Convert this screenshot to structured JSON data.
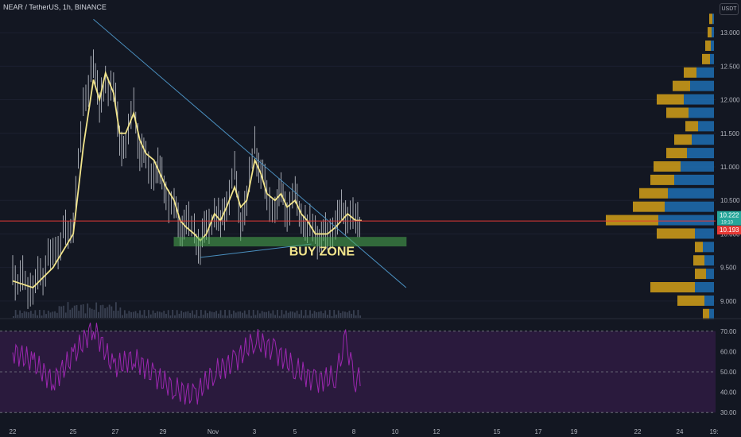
{
  "header": {
    "symbol_line": "NEAR / TetherUS, 1h, BINANCE",
    "currency": "USDT"
  },
  "colors": {
    "background": "#131722",
    "candle": "#c8ccd4",
    "ma": "#f2e58c",
    "price_line": "#e53935",
    "trendline": "#4a8fbf",
    "buy_zone": "#4caf50",
    "vp_up": "#d4a017",
    "vp_down": "#1e6fb3",
    "rsi_line": "#9c27b0",
    "rsi_band": "#2a1a3d"
  },
  "annotations": {
    "buy_zone_label": "BUY ZONE"
  },
  "chart_data": [
    {
      "type": "line",
      "title": "NEAR / TetherUS, 1h, BINANCE",
      "x_ticks": [
        "22",
        "25",
        "27",
        "29",
        "Nov",
        "3",
        "5",
        "8",
        "10",
        "12",
        "15",
        "17",
        "19",
        "22",
        "24",
        "19:"
      ],
      "y_ticks": [
        "13.000",
        "12.500",
        "12.000",
        "11.500",
        "11.000",
        "10.500",
        "10.000",
        "9.500",
        "9.000"
      ],
      "ylim": [
        8.75,
        13.25
      ],
      "series": [
        {
          "x": [
            22,
            23,
            24,
            25,
            25.5,
            26,
            26.3,
            26.6,
            27,
            27.3,
            27.6,
            28,
            28.3,
            28.6,
            29,
            29.3,
            29.6,
            30,
            30.3,
            30.6,
            31,
            31.3,
            31.6,
            32,
            32.3,
            32.6,
            33,
            33.3,
            33.6,
            34,
            34.3,
            34.6,
            35,
            35.3,
            35.6,
            36,
            36.3,
            36.6,
            37,
            37.3,
            37.6,
            38,
            38.3,
            38.6,
            39,
            39.3
          ],
          "close": [
            9.4,
            9.2,
            9.7,
            10.2,
            11.8,
            12.7,
            11.8,
            12.3,
            12.2,
            11.4,
            11.3,
            11.9,
            11.3,
            11.0,
            11.0,
            10.9,
            10.6,
            10.4,
            10.1,
            10.2,
            10.0,
            9.9,
            10.0,
            10.4,
            10.1,
            10.5,
            10.9,
            10.2,
            10.5,
            11.3,
            11.0,
            10.5,
            10.4,
            10.6,
            10.4,
            10.5,
            10.3,
            10.1,
            10.0,
            10.0,
            9.95,
            10.2,
            10.3,
            10.4,
            10.1,
            10.22
          ],
          "ma": [
            9.3,
            9.2,
            9.5,
            10.0,
            11.3,
            12.3,
            12.0,
            12.4,
            12.1,
            11.5,
            11.5,
            11.8,
            11.4,
            11.2,
            11.1,
            10.9,
            10.7,
            10.5,
            10.2,
            10.1,
            10.0,
            9.9,
            10.0,
            10.3,
            10.2,
            10.4,
            10.7,
            10.4,
            10.5,
            11.1,
            10.9,
            10.6,
            10.5,
            10.6,
            10.4,
            10.5,
            10.3,
            10.2,
            10.0,
            10.0,
            10.0,
            10.1,
            10.2,
            10.3,
            10.2,
            10.2
          ]
        }
      ],
      "current_price": {
        "value": 10.222,
        "label": "10.222",
        "countdown": "19:10"
      },
      "price_line": {
        "value": 10.193,
        "label": "10.193"
      },
      "trendlines": [
        {
          "from": {
            "x": 26,
            "y": 13.2
          },
          "to": {
            "x": 41.5,
            "y": 9.2
          }
        },
        {
          "from": {
            "x": 31.3,
            "y": 9.65
          },
          "to": {
            "x": 36.8,
            "y": 9.85
          }
        }
      ],
      "buy_zone": {
        "x_start": 30,
        "x_end": 41.5,
        "y_low": 9.82,
        "y_high": 9.95,
        "label": "BUY ZONE"
      },
      "volume_profile": [
        {
          "price": 13.2,
          "up": 4,
          "down": 2
        },
        {
          "price": 13.0,
          "up": 5,
          "down": 3
        },
        {
          "price": 12.8,
          "up": 7,
          "down": 4
        },
        {
          "price": 12.6,
          "up": 10,
          "down": 5
        },
        {
          "price": 12.4,
          "up": 16,
          "down": 22
        },
        {
          "price": 12.2,
          "up": 22,
          "down": 30
        },
        {
          "price": 12.0,
          "up": 34,
          "down": 38
        },
        {
          "price": 11.8,
          "up": 28,
          "down": 32
        },
        {
          "price": 11.6,
          "up": 16,
          "down": 20
        },
        {
          "price": 11.4,
          "up": 22,
          "down": 28
        },
        {
          "price": 11.2,
          "up": 26,
          "down": 34
        },
        {
          "price": 11.0,
          "up": 34,
          "down": 42
        },
        {
          "price": 10.8,
          "up": 30,
          "down": 50
        },
        {
          "price": 10.6,
          "up": 36,
          "down": 58
        },
        {
          "price": 10.4,
          "up": 40,
          "down": 62
        },
        {
          "price": 10.2,
          "up": 66,
          "down": 70
        },
        {
          "price": 10.0,
          "up": 48,
          "down": 24
        },
        {
          "price": 9.8,
          "up": 10,
          "down": 14
        },
        {
          "price": 9.6,
          "up": 14,
          "down": 12
        },
        {
          "price": 9.4,
          "up": 14,
          "down": 10
        },
        {
          "price": 9.2,
          "up": 56,
          "down": 24
        },
        {
          "price": 9.0,
          "up": 34,
          "down": 12
        },
        {
          "price": 8.8,
          "up": 8,
          "down": 6
        }
      ]
    },
    {
      "type": "line",
      "y_ticks": [
        "70.00",
        "60.00",
        "50.00",
        "40.00",
        "30.00"
      ],
      "ylim": [
        25,
        75
      ],
      "bands": [
        30,
        50,
        70
      ],
      "series": [
        {
          "x": [
            22,
            23,
            24,
            25,
            26,
            27,
            28,
            29,
            30,
            31,
            32,
            33,
            34,
            35,
            36,
            37,
            38,
            38.5,
            39,
            39.3
          ],
          "values": [
            60,
            55,
            45,
            58,
            72,
            52,
            57,
            48,
            42,
            38,
            50,
            55,
            66,
            60,
            52,
            45,
            48,
            65,
            46,
            48
          ]
        }
      ]
    }
  ]
}
